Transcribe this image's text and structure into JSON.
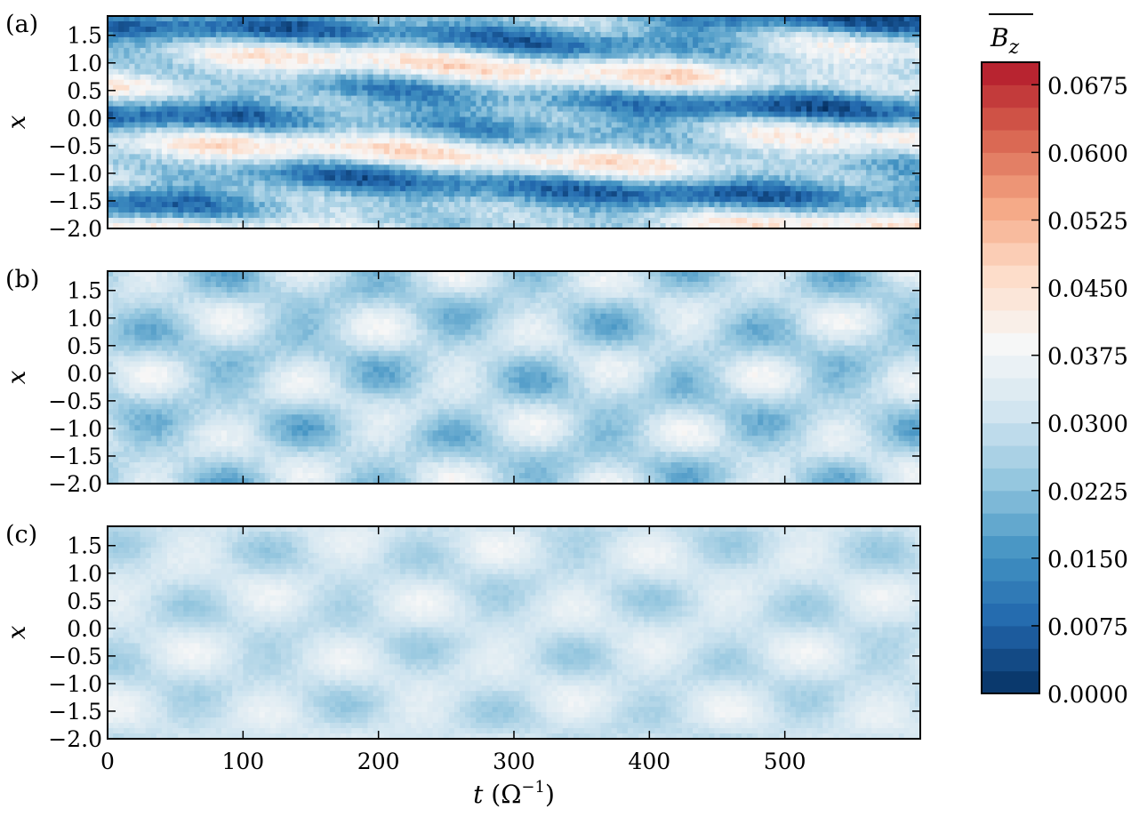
{
  "chart_data": {
    "type": "heatmap",
    "panels": [
      {
        "label": "(a)",
        "ylabel": "x",
        "pattern": "strong"
      },
      {
        "label": "(b)",
        "ylabel": "x",
        "pattern": "medium"
      },
      {
        "label": "(c)",
        "ylabel": "x",
        "pattern": "weak"
      }
    ],
    "xlabel_var": "t",
    "xlabel_unit": "(Ω",
    "xlabel_unit_exp": "−1",
    "xlabel_close": ")",
    "xlim": [
      0,
      600
    ],
    "ylim": [
      -2.0,
      1.85
    ],
    "x_ticks": [
      0,
      100,
      200,
      300,
      400,
      500
    ],
    "x_tick_labels": [
      "0",
      "100",
      "200",
      "300",
      "400",
      "500"
    ],
    "y_ticks": [
      1.5,
      1.0,
      0.5,
      0.0,
      -0.5,
      -1.0,
      -1.5,
      -2.0
    ],
    "y_tick_labels": [
      "1.5",
      "1.0",
      "0.5",
      "0.0",
      "−0.5",
      "−1.0",
      "−1.5",
      "−2.0"
    ],
    "colorbar": {
      "title_var": "B",
      "title_sub": "z",
      "range": [
        0.0,
        0.07
      ],
      "levels": 28,
      "ticks": [
        0.0,
        0.0075,
        0.015,
        0.0225,
        0.03,
        0.0375,
        0.045,
        0.0525,
        0.06,
        0.0675
      ],
      "tick_labels": [
        "0.0000",
        "0.0075",
        "0.0150",
        "0.0225",
        "0.0300",
        "0.0375",
        "0.0450",
        "0.0525",
        "0.0600",
        "0.0675"
      ],
      "colormap": [
        "#053061",
        "#2166ac",
        "#4393c3",
        "#92c5de",
        "#d1e5f0",
        "#f7f7f7",
        "#fddbc7",
        "#f4a582",
        "#d6604d",
        "#b2182b"
      ]
    }
  }
}
